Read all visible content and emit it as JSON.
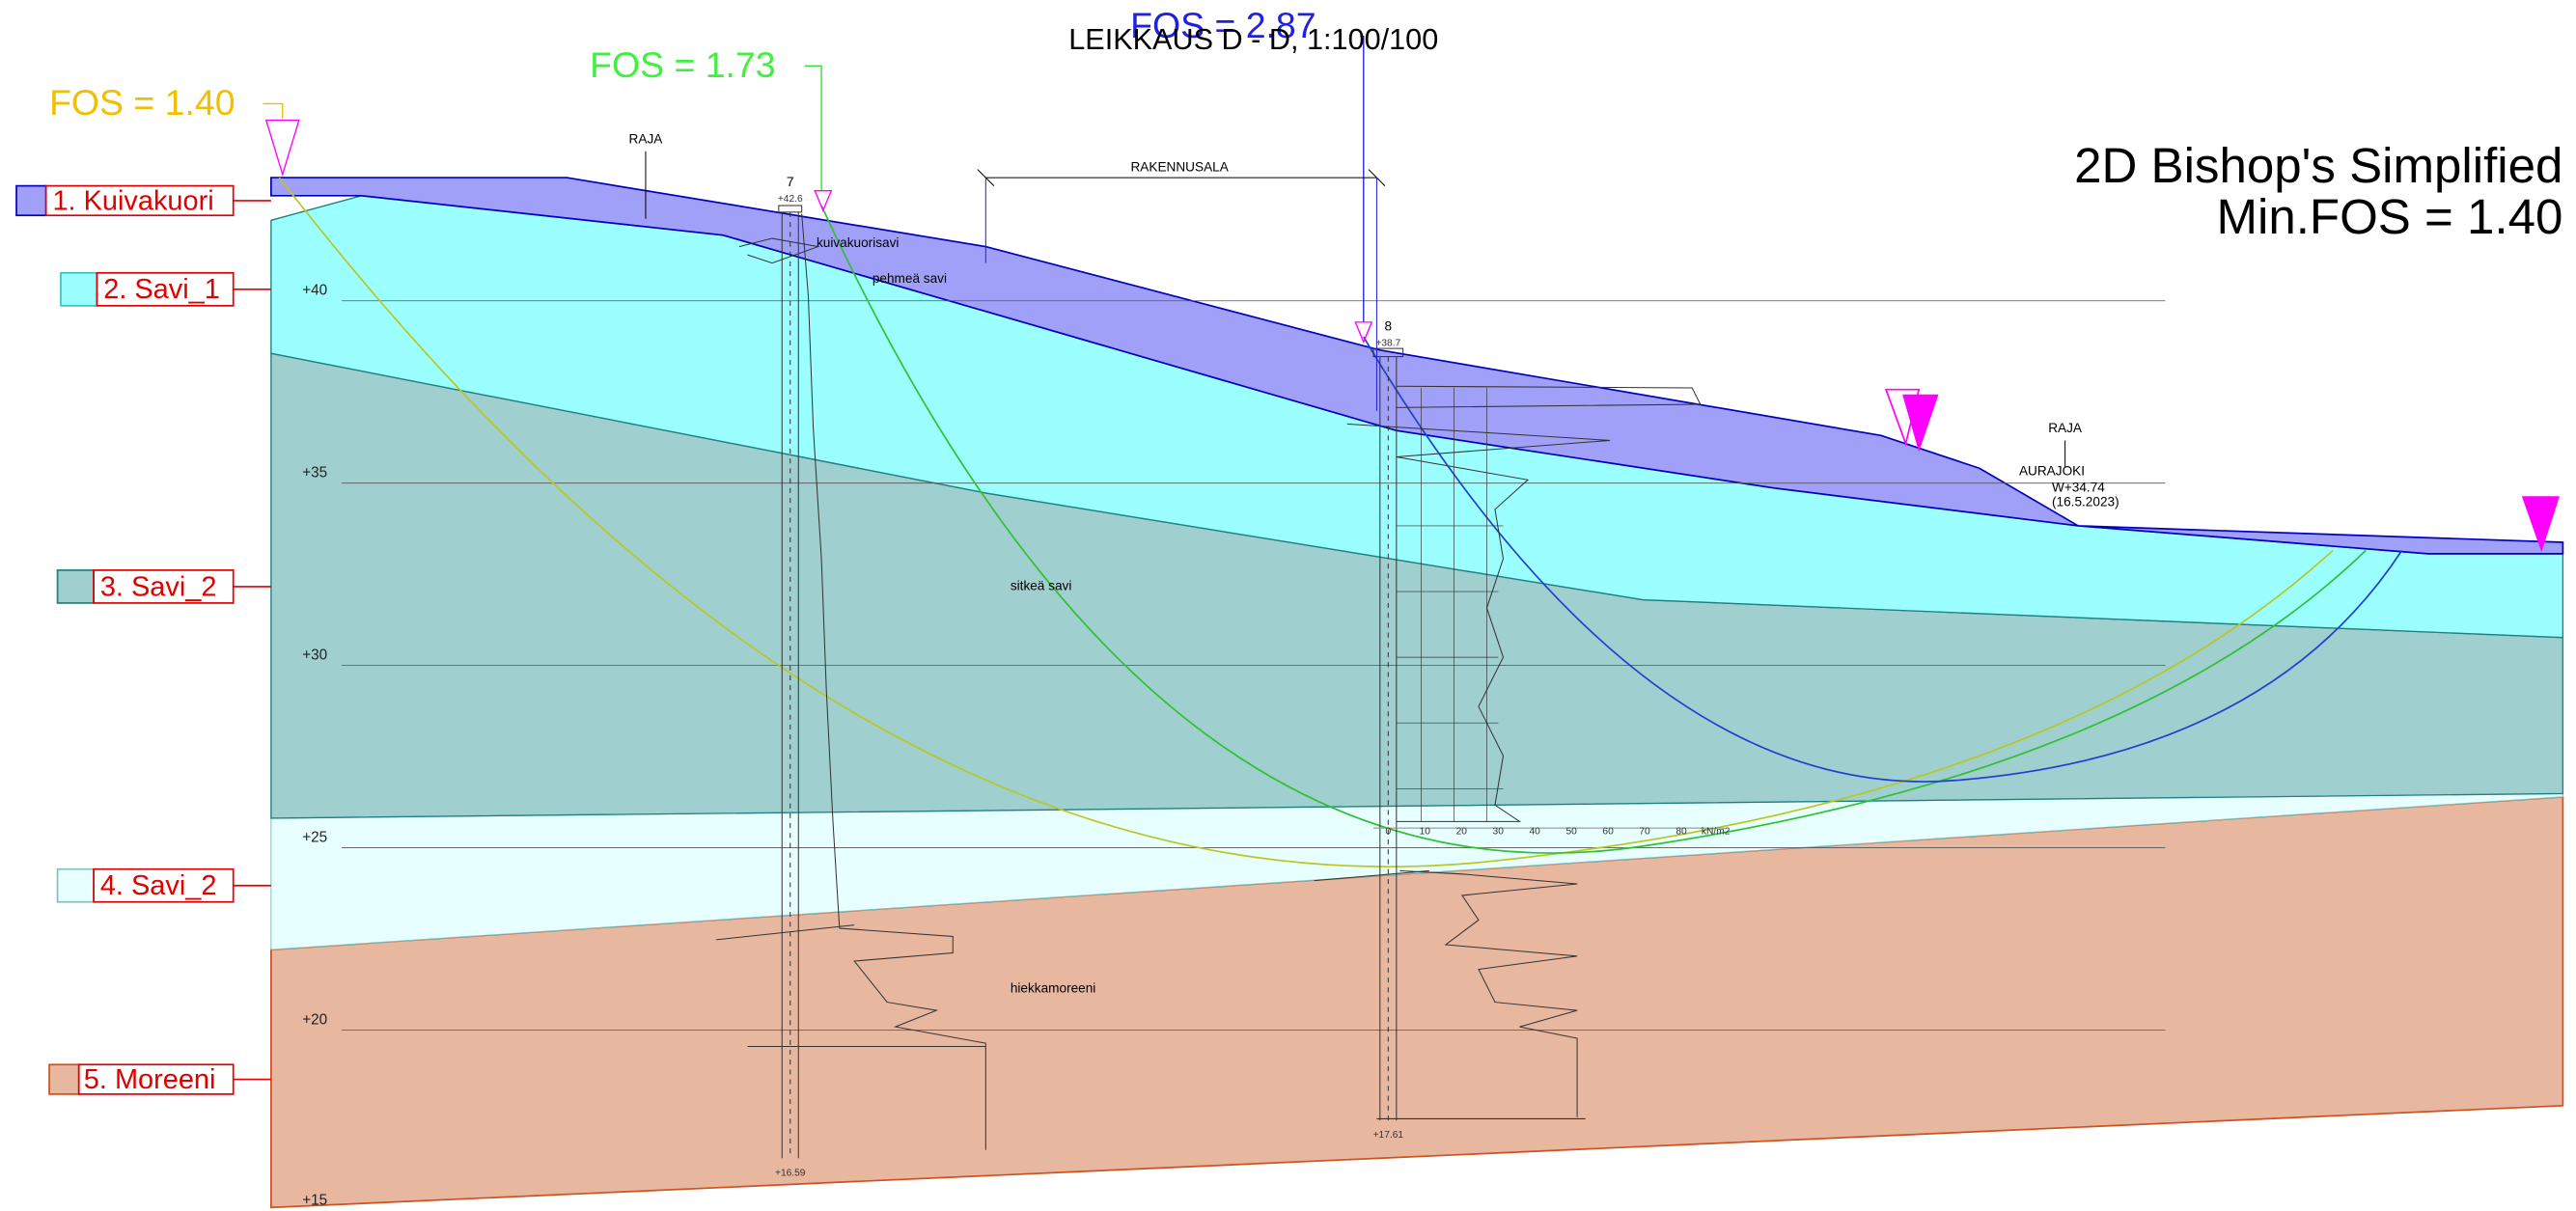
{
  "title": "LEIKKAUS D - D, 1:100/100",
  "method": {
    "name": "2D Bishop's Simplified",
    "min_fos": "Min.FOS = 1.40"
  },
  "fos_labels": [
    "FOS = 1.40",
    "FOS = 1.73",
    "FOS = 2.87"
  ],
  "layers": [
    "1. Kuivakuori",
    "2. Savi_1",
    "3. Savi_2",
    "4. Savi_2",
    "5. Moreeni"
  ],
  "elevations": [
    "+40",
    "+35",
    "+30",
    "+25",
    "+20",
    "+15"
  ],
  "annotations": {
    "raja_left": "RAJA",
    "rakennusala": "RAKENNUSALA",
    "kuivakuorisavi": "kuivakuorisavi",
    "pehmea": "pehmeä savi",
    "sitkea": "sitkeä savi",
    "hiekkamoreeni": "hiekkamoreeni",
    "raja_right": "RAJA",
    "aurajoki": "AURAJOKI",
    "water_level": "W+34.74",
    "water_date": "(16.5.2023)"
  },
  "boreholes": [
    {
      "id": "7",
      "top": "+42.6",
      "bottom": "+16.59"
    },
    {
      "id": "8",
      "top": "+38.7",
      "bottom": "+17.61"
    }
  ],
  "scale": {
    "ticks": [
      "0",
      "10",
      "20",
      "30",
      "40",
      "50",
      "60",
      "70",
      "80"
    ],
    "unit": "kN/m2"
  }
}
